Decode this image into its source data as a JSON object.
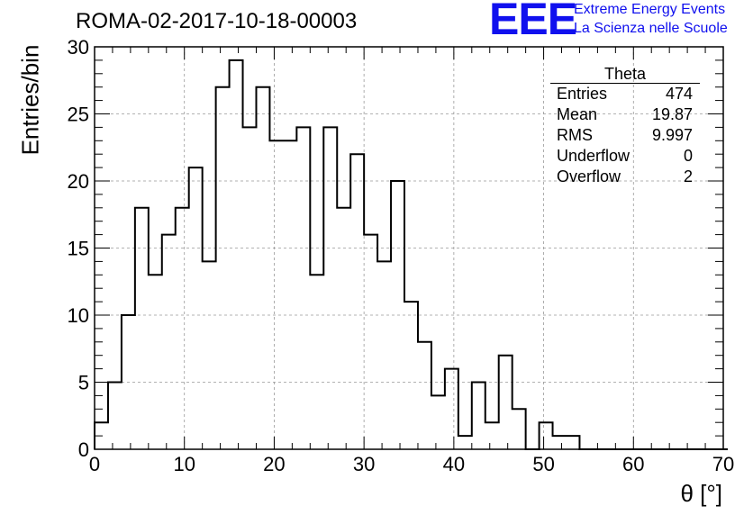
{
  "header": {
    "title": "ROMA-02-2017-10-18-00003",
    "logo_text": "EEE",
    "logo_line1": "Extreme Energy Events",
    "logo_line2": "La Scienza nelle Scuole",
    "brand_color": "#1010ee"
  },
  "stats": {
    "name": "Theta",
    "rows": [
      {
        "label": "Entries",
        "value": "474"
      },
      {
        "label": "Mean",
        "value": "19.87"
      },
      {
        "label": "RMS",
        "value": "9.997"
      },
      {
        "label": "Underflow",
        "value": "0"
      },
      {
        "label": "Overflow",
        "value": "2"
      }
    ]
  },
  "chart_data": {
    "type": "bar",
    "subtype": "step-histogram",
    "xlabel": "θ [°]",
    "ylabel": "Entries/bin",
    "xlim": [
      0,
      70
    ],
    "ylim": [
      0,
      30
    ],
    "xticks": [
      0,
      10,
      20,
      30,
      40,
      50,
      60,
      70
    ],
    "yticks": [
      0,
      5,
      10,
      15,
      20,
      25,
      30
    ],
    "grid": true,
    "legend": "top-right stats box",
    "bin_width": 1.5,
    "bin_start": 0,
    "values": [
      2,
      5,
      10,
      18,
      13,
      16,
      18,
      21,
      14,
      27,
      29,
      24,
      27,
      23,
      23,
      24,
      13,
      24,
      18,
      22,
      16,
      14,
      20,
      11,
      8,
      4,
      6,
      1,
      5,
      2,
      7,
      3,
      0,
      2,
      1,
      1,
      0,
      0,
      0,
      0,
      0,
      0,
      0,
      0,
      0,
      0,
      0
    ]
  }
}
